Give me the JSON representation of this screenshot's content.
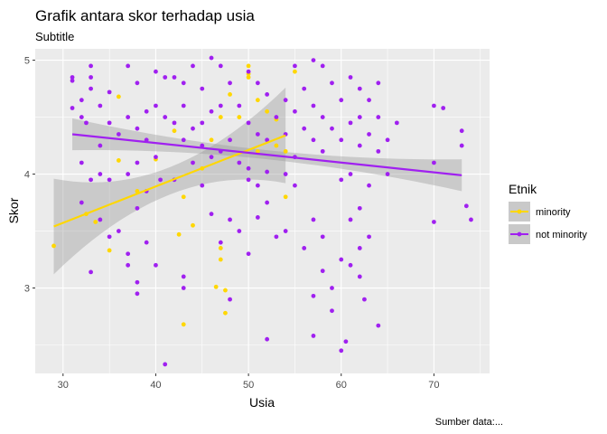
{
  "chart_data": {
    "type": "scatter",
    "title": "Grafik antara skor terhadap usia",
    "subtitle": "Subtitle",
    "xlabel": "Usia",
    "ylabel": "Skor",
    "caption": "Sumber data:...",
    "xlim": [
      27,
      76
    ],
    "ylim": [
      2.25,
      5.1
    ],
    "xticks": [
      30,
      40,
      50,
      60,
      70
    ],
    "yticks": [
      3,
      4,
      5
    ],
    "grid": true,
    "legend": {
      "title": "Etnik",
      "position": "right"
    },
    "series": [
      {
        "name": "minority",
        "color": "#FFD700",
        "points": [
          [
            29,
            3.37
          ],
          [
            32.5,
            3.65
          ],
          [
            33.5,
            3.58
          ],
          [
            35,
            3.33
          ],
          [
            36,
            4.68
          ],
          [
            36,
            4.12
          ],
          [
            38,
            3.85
          ],
          [
            40,
            4.13
          ],
          [
            42,
            4.38
          ],
          [
            42.5,
            3.47
          ],
          [
            43,
            2.68
          ],
          [
            43,
            3.8
          ],
          [
            44,
            3.55
          ],
          [
            45,
            4.05
          ],
          [
            46,
            4.3
          ],
          [
            46.5,
            3.01
          ],
          [
            47,
            3.25
          ],
          [
            47,
            3.35
          ],
          [
            47,
            4.5
          ],
          [
            47.5,
            2.98
          ],
          [
            47.5,
            2.78
          ],
          [
            48,
            4.7
          ],
          [
            49,
            4.5
          ],
          [
            50,
            4.95
          ],
          [
            50,
            4.88
          ],
          [
            50,
            4.85
          ],
          [
            51,
            4.65
          ],
          [
            51,
            4.2
          ],
          [
            52,
            4.55
          ],
          [
            53,
            4.25
          ],
          [
            53,
            4.48
          ],
          [
            54,
            4.2
          ],
          [
            54,
            3.8
          ],
          [
            55,
            4.9
          ]
        ],
        "trend": {
          "x": [
            29,
            54
          ],
          "y": [
            3.54,
            4.34
          ]
        }
      },
      {
        "name": "not minority",
        "color": "#A020F0",
        "points": [
          [
            31,
            4.85
          ],
          [
            31,
            4.58
          ],
          [
            31,
            4.82
          ],
          [
            32,
            4.65
          ],
          [
            32,
            4.5
          ],
          [
            32,
            4.1
          ],
          [
            32,
            3.75
          ],
          [
            32.5,
            4.45
          ],
          [
            33,
            4.95
          ],
          [
            33,
            4.75
          ],
          [
            33,
            4.85
          ],
          [
            33,
            3.95
          ],
          [
            33,
            3.14
          ],
          [
            34,
            4.6
          ],
          [
            34,
            4.25
          ],
          [
            34,
            4.0
          ],
          [
            34,
            3.6
          ],
          [
            35,
            4.45
          ],
          [
            35,
            3.95
          ],
          [
            35,
            3.45
          ],
          [
            35,
            4.72
          ],
          [
            36,
            4.35
          ],
          [
            36,
            3.5
          ],
          [
            37,
            4.95
          ],
          [
            37,
            4.5
          ],
          [
            37,
            4.0
          ],
          [
            37,
            3.3
          ],
          [
            37,
            3.2
          ],
          [
            38,
            4.8
          ],
          [
            38,
            4.4
          ],
          [
            38,
            4.1
          ],
          [
            38,
            3.7
          ],
          [
            38,
            3.05
          ],
          [
            38,
            2.95
          ],
          [
            39,
            4.55
          ],
          [
            39,
            4.3
          ],
          [
            39,
            3.85
          ],
          [
            39,
            3.4
          ],
          [
            40,
            4.9
          ],
          [
            40,
            4.6
          ],
          [
            40,
            4.15
          ],
          [
            40,
            3.2
          ],
          [
            40.5,
            3.95
          ],
          [
            41,
            4.85
          ],
          [
            41,
            4.5
          ],
          [
            41,
            2.33
          ],
          [
            42,
            4.85
          ],
          [
            42,
            4.45
          ],
          [
            42,
            3.95
          ],
          [
            43,
            4.8
          ],
          [
            43,
            4.6
          ],
          [
            43,
            4.3
          ],
          [
            43,
            3.1
          ],
          [
            43,
            3.0
          ],
          [
            44,
            4.95
          ],
          [
            44,
            4.4
          ],
          [
            44,
            4.1
          ],
          [
            45,
            4.75
          ],
          [
            45,
            4.45
          ],
          [
            45,
            3.9
          ],
          [
            45,
            4.25
          ],
          [
            46,
            5.02
          ],
          [
            46,
            4.55
          ],
          [
            46,
            4.15
          ],
          [
            46,
            3.65
          ],
          [
            47,
            4.95
          ],
          [
            47,
            4.6
          ],
          [
            47,
            4.2
          ],
          [
            47,
            3.4
          ],
          [
            48,
            4.8
          ],
          [
            48,
            4.3
          ],
          [
            48,
            3.6
          ],
          [
            48,
            2.9
          ],
          [
            49,
            4.6
          ],
          [
            49,
            4.1
          ],
          [
            49,
            3.5
          ],
          [
            50,
            4.9
          ],
          [
            50,
            4.45
          ],
          [
            50,
            4.05
          ],
          [
            50,
            3.3
          ],
          [
            50,
            3.95
          ],
          [
            51,
            4.8
          ],
          [
            51,
            4.35
          ],
          [
            51,
            3.9
          ],
          [
            51,
            3.62
          ],
          [
            52,
            4.7
          ],
          [
            52,
            4.3
          ],
          [
            52,
            4.02
          ],
          [
            52,
            3.75
          ],
          [
            52,
            2.55
          ],
          [
            53,
            4.5
          ],
          [
            53,
            3.45
          ],
          [
            54,
            4.65
          ],
          [
            54,
            4.35
          ],
          [
            54,
            4.0
          ],
          [
            54,
            3.5
          ],
          [
            55,
            4.95
          ],
          [
            55,
            4.55
          ],
          [
            55,
            4.15
          ],
          [
            55,
            3.9
          ],
          [
            56,
            4.75
          ],
          [
            56,
            4.4
          ],
          [
            56,
            3.35
          ],
          [
            57,
            5.0
          ],
          [
            57,
            4.6
          ],
          [
            57,
            4.3
          ],
          [
            57,
            3.6
          ],
          [
            57,
            2.93
          ],
          [
            57,
            2.58
          ],
          [
            58,
            4.95
          ],
          [
            58,
            4.5
          ],
          [
            58,
            4.2
          ],
          [
            58,
            3.45
          ],
          [
            58,
            3.15
          ],
          [
            59,
            4.8
          ],
          [
            59,
            4.4
          ],
          [
            59,
            3.0
          ],
          [
            59,
            2.8
          ],
          [
            60,
            4.65
          ],
          [
            60,
            4.3
          ],
          [
            60,
            3.95
          ],
          [
            60,
            3.25
          ],
          [
            60,
            2.45
          ],
          [
            60.5,
            2.53
          ],
          [
            61,
            4.85
          ],
          [
            61,
            4.45
          ],
          [
            61,
            4.0
          ],
          [
            61,
            3.6
          ],
          [
            61,
            3.2
          ],
          [
            62,
            4.75
          ],
          [
            62,
            4.5
          ],
          [
            62,
            4.25
          ],
          [
            62,
            3.7
          ],
          [
            62,
            3.35
          ],
          [
            62,
            3.1
          ],
          [
            62.5,
            2.9
          ],
          [
            63,
            4.65
          ],
          [
            63,
            4.35
          ],
          [
            63,
            3.9
          ],
          [
            63,
            3.45
          ],
          [
            64,
            4.8
          ],
          [
            64,
            4.5
          ],
          [
            64,
            4.2
          ],
          [
            64,
            2.67
          ],
          [
            65,
            4.3
          ],
          [
            65,
            4.0
          ],
          [
            66,
            4.45
          ],
          [
            70,
            4.6
          ],
          [
            70,
            4.1
          ],
          [
            70,
            3.58
          ],
          [
            71,
            4.58
          ],
          [
            73,
            4.38
          ],
          [
            73,
            4.25
          ],
          [
            73.5,
            3.72
          ],
          [
            74,
            3.6
          ]
        ],
        "trend": {
          "x": [
            31,
            73
          ],
          "y": [
            4.35,
            3.99
          ]
        }
      }
    ]
  }
}
